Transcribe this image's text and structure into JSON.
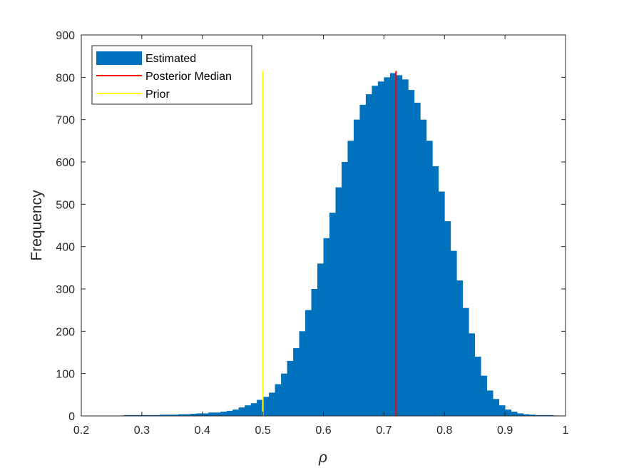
{
  "chart_data": {
    "type": "bar",
    "title": "",
    "xlabel": "ρ",
    "ylabel": "Frequency",
    "xlim": [
      0.2,
      1.0
    ],
    "ylim": [
      0,
      900
    ],
    "xticks": [
      "0.2",
      "0.3",
      "0.4",
      "0.5",
      "0.6",
      "0.7",
      "0.8",
      "0.9",
      "1"
    ],
    "yticks": [
      "0",
      "100",
      "200",
      "300",
      "400",
      "500",
      "600",
      "700",
      "800",
      "900"
    ],
    "grid": false,
    "legend_position": "top-left",
    "series": [
      {
        "name": "Estimated",
        "kind": "histogram",
        "color": "#0072BD",
        "bin_width": 0.01,
        "bin_centers": [
          0.275,
          0.285,
          0.295,
          0.305,
          0.315,
          0.325,
          0.335,
          0.345,
          0.355,
          0.365,
          0.375,
          0.385,
          0.395,
          0.405,
          0.415,
          0.425,
          0.435,
          0.445,
          0.455,
          0.465,
          0.475,
          0.485,
          0.495,
          0.505,
          0.515,
          0.525,
          0.535,
          0.545,
          0.555,
          0.565,
          0.575,
          0.585,
          0.595,
          0.605,
          0.615,
          0.625,
          0.635,
          0.645,
          0.655,
          0.665,
          0.675,
          0.685,
          0.695,
          0.705,
          0.715,
          0.725,
          0.735,
          0.745,
          0.755,
          0.765,
          0.775,
          0.785,
          0.795,
          0.805,
          0.815,
          0.825,
          0.835,
          0.845,
          0.855,
          0.865,
          0.875,
          0.885,
          0.895,
          0.905,
          0.915,
          0.925,
          0.935,
          0.945,
          0.955,
          0.965,
          0.975,
          0.985
        ],
        "values": [
          2,
          2,
          2,
          2,
          2,
          2,
          3,
          3,
          3,
          4,
          4,
          5,
          6,
          6,
          8,
          8,
          10,
          12,
          15,
          20,
          25,
          30,
          38,
          45,
          55,
          75,
          100,
          130,
          160,
          200,
          250,
          300,
          360,
          420,
          480,
          540,
          600,
          650,
          700,
          735,
          760,
          780,
          790,
          800,
          810,
          805,
          795,
          770,
          740,
          700,
          650,
          590,
          530,
          460,
          390,
          320,
          255,
          195,
          140,
          95,
          60,
          40,
          25,
          15,
          10,
          6,
          4,
          3,
          2,
          2,
          2,
          1
        ]
      },
      {
        "name": "Posterior Median",
        "kind": "vline",
        "color": "#FF0000",
        "x": 0.72,
        "y_range": [
          0,
          815
        ]
      },
      {
        "name": "Prior",
        "kind": "vline",
        "color": "#FFFF00",
        "x": 0.5,
        "y_range": [
          0,
          815
        ]
      }
    ]
  }
}
